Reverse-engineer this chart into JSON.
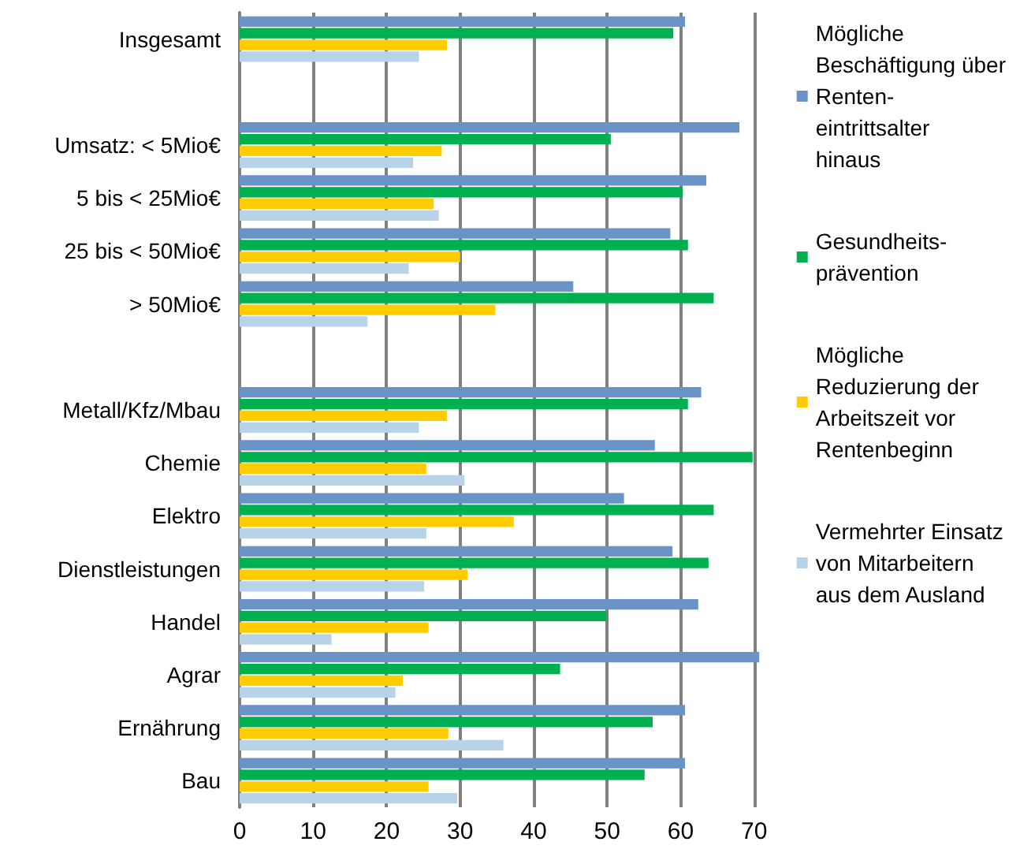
{
  "chart_data": {
    "type": "bar",
    "orientation": "horizontal",
    "categories": [
      "Insgesamt",
      null,
      "Umsatz: < 5Mio€",
      "5 bis < 25Mio€",
      "25 bis < 50Mio€",
      "> 50Mio€",
      null,
      "Metall/Kfz/Mbau",
      "Chemie",
      "Elektro",
      "Dienstleistungen",
      "Handel",
      "Agrar",
      "Ernährung",
      "Bau"
    ],
    "series": [
      {
        "name": "Mögliche Beschäftigung über Renten-eintrittsalter hinaus",
        "color": "#6a93c8",
        "values": [
          60.6,
          null,
          68.0,
          63.5,
          58.6,
          45.4,
          null,
          62.8,
          56.5,
          52.3,
          58.9,
          62.4,
          70.7,
          60.6,
          60.6
        ]
      },
      {
        "name": "Gesundheits-prävention",
        "color": "#00b050",
        "values": [
          59.0,
          null,
          50.5,
          60.3,
          61.0,
          64.5,
          null,
          61.0,
          69.8,
          64.5,
          63.8,
          49.9,
          43.6,
          56.2,
          55.1
        ]
      },
      {
        "name": "Mögliche Reduzierung der Arbeitszeit vor Rentenbeginn",
        "color": "#ffcc00",
        "values": [
          28.2,
          null,
          27.5,
          26.4,
          30.0,
          34.8,
          null,
          28.2,
          25.4,
          37.3,
          31.0,
          25.7,
          22.2,
          28.4,
          25.7
        ]
      },
      {
        "name": "Vermehrter Einsatz von Mitarbeitern aus dem Ausland",
        "color": "#b8d3e8",
        "values": [
          24.4,
          null,
          23.6,
          27.1,
          23.0,
          17.4,
          null,
          24.4,
          30.6,
          25.4,
          25.1,
          12.5,
          21.2,
          35.9,
          29.6
        ]
      }
    ],
    "xlim": [
      0,
      71
    ],
    "xticks": [
      0,
      10,
      20,
      30,
      40,
      50,
      60,
      70
    ],
    "grid": "x",
    "legend": "right"
  }
}
